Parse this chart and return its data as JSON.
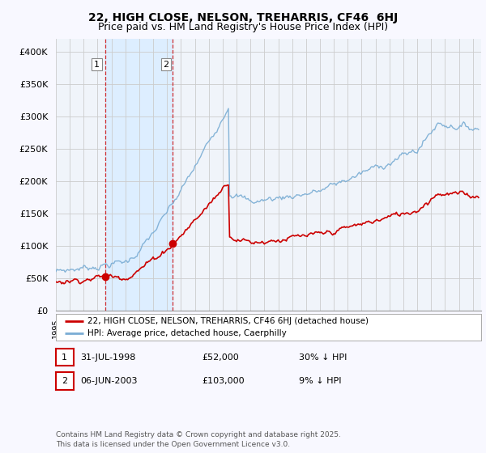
{
  "title": "22, HIGH CLOSE, NELSON, TREHARRIS, CF46  6HJ",
  "subtitle": "Price paid vs. HM Land Registry's House Price Index (HPI)",
  "ylim": [
    0,
    420000
  ],
  "yticks": [
    0,
    50000,
    100000,
    150000,
    200000,
    250000,
    300000,
    350000,
    400000
  ],
  "ytick_labels": [
    "£0",
    "£50K",
    "£100K",
    "£150K",
    "£200K",
    "£250K",
    "£300K",
    "£350K",
    "£400K"
  ],
  "sale1_year": 1998.542,
  "sale1_price": 52000,
  "sale2_year": 2003.42,
  "sale2_price": 103000,
  "hpi_color": "#7aadd4",
  "price_color": "#cc0000",
  "shade_color": "#ddeeff",
  "grid_color": "#cccccc",
  "bg_color": "#f8f8ff",
  "plot_bg": "#f0f4fa",
  "legend_label1": "22, HIGH CLOSE, NELSON, TREHARRIS, CF46 6HJ (detached house)",
  "legend_label2": "HPI: Average price, detached house, Caerphilly",
  "table_row1": [
    "1",
    "31-JUL-1998",
    "£52,000",
    "30% ↓ HPI"
  ],
  "table_row2": [
    "2",
    "06-JUN-2003",
    "£103,000",
    "9% ↓ HPI"
  ],
  "footer": "Contains HM Land Registry data © Crown copyright and database right 2025.\nThis data is licensed under the Open Government Licence v3.0.",
  "title_fontsize": 10,
  "subtitle_fontsize": 9
}
